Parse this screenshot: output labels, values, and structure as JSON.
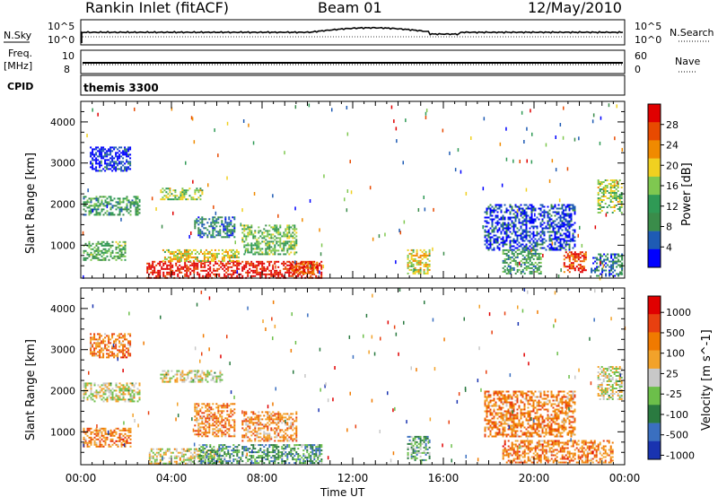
{
  "header": {
    "station": "Rankin Inlet (fitACF)",
    "beam": "Beam 01",
    "date": "12/May/2010"
  },
  "labels": {
    "nsky": "N.Sky",
    "nsearch": "N.Search",
    "freq_line1": "Freq.",
    "freq_line2": "[MHz]",
    "nave": "Nave",
    "cpid": "CPID",
    "cpid_value": "themis 3300",
    "ytick_noise_hi": "10^5",
    "ytick_noise_lo": "10^0",
    "ytick_freq_hi": "10",
    "ytick_freq_lo": "8",
    "ytick_nave_hi": "60",
    "ytick_nave_lo": "0"
  },
  "colors": {
    "power": [
      "#0000ff",
      "#1e5bb4",
      "#3a8c4a",
      "#2f9a55",
      "#7fc850",
      "#f0d020",
      "#f08a00",
      "#e84a00",
      "#e00000"
    ],
    "velocity": [
      "#1933b0",
      "#3a6fc0",
      "#2a7a40",
      "#6cbf4a",
      "#c8c8c8",
      "#f2a22a",
      "#f07a00",
      "#e84010",
      "#e00000"
    ]
  },
  "chart_data": [
    {
      "type": "heatmap",
      "title": "",
      "xlabel": "Time UT",
      "ylabel": "Slant Range [km]",
      "x_ticks": [
        "00:00",
        "04:00",
        "08:00",
        "12:00",
        "16:00",
        "20:00",
        "00:00"
      ],
      "y_ticks": [
        "1000",
        "2000",
        "3000",
        "4000"
      ],
      "ylim": [
        200,
        4500
      ],
      "colorbar_label": "Power [dB]",
      "colorbar_ticks": [
        "4",
        "8",
        "12",
        "16",
        "20",
        "24",
        "28"
      ],
      "regions": [
        {
          "t0": 0.1,
          "t1": 2.6,
          "r0": 1750,
          "r1": 2200,
          "level": 0.35
        },
        {
          "t0": 0.1,
          "t1": 2.0,
          "r0": 650,
          "r1": 1100,
          "level": 0.4
        },
        {
          "t0": 0.4,
          "t1": 2.2,
          "r0": 2800,
          "r1": 3400,
          "level": 0.08
        },
        {
          "t0": 2.9,
          "t1": 10.6,
          "r0": 220,
          "r1": 620,
          "level": 0.97
        },
        {
          "t0": 3.6,
          "t1": 7.0,
          "r0": 600,
          "r1": 900,
          "level": 0.6
        },
        {
          "t0": 3.5,
          "t1": 5.4,
          "r0": 2100,
          "r1": 2400,
          "level": 0.5
        },
        {
          "t0": 5.0,
          "t1": 6.8,
          "r0": 1200,
          "r1": 1700,
          "level": 0.25
        },
        {
          "t0": 7.1,
          "t1": 9.5,
          "r0": 800,
          "r1": 1500,
          "level": 0.45
        },
        {
          "t0": 9.2,
          "t1": 10.4,
          "r0": 300,
          "r1": 600,
          "level": 0.85
        },
        {
          "t0": 14.4,
          "t1": 15.4,
          "r0": 300,
          "r1": 900,
          "level": 0.6
        },
        {
          "t0": 17.8,
          "t1": 21.8,
          "r0": 900,
          "r1": 2000,
          "level": 0.12
        },
        {
          "t0": 18.6,
          "t1": 20.3,
          "r0": 300,
          "r1": 900,
          "level": 0.35
        },
        {
          "t0": 21.3,
          "t1": 22.3,
          "r0": 350,
          "r1": 850,
          "level": 0.88
        },
        {
          "t0": 22.8,
          "t1": 23.9,
          "r0": 1800,
          "r1": 2600,
          "level": 0.5
        },
        {
          "t0": 22.5,
          "t1": 23.9,
          "r0": 250,
          "r1": 800,
          "level": 0.2
        }
      ]
    },
    {
      "type": "heatmap",
      "title": "",
      "xlabel": "Time UT",
      "ylabel": "Slant Range [km]",
      "x_ticks": [
        "00:00",
        "04:00",
        "08:00",
        "12:00",
        "16:00",
        "20:00",
        "00:00"
      ],
      "y_ticks": [
        "1000",
        "2000",
        "3000",
        "4000"
      ],
      "ylim": [
        200,
        4500
      ],
      "colorbar_label": "Velocity [m s^-1]",
      "colorbar_ticks": [
        "1000",
        "500",
        "100",
        "25",
        "-25",
        "-100",
        "-500",
        "-1000"
      ],
      "regions": [
        {
          "t0": 0.1,
          "t1": 2.6,
          "r0": 1750,
          "r1": 2200,
          "level": 0.5
        },
        {
          "t0": 0.1,
          "t1": 2.2,
          "r0": 650,
          "r1": 1100,
          "level": 0.72
        },
        {
          "t0": 0.4,
          "t1": 2.2,
          "r0": 2800,
          "r1": 3400,
          "level": 0.72
        },
        {
          "t0": 3.0,
          "t1": 6.2,
          "r0": 220,
          "r1": 600,
          "level": 0.5
        },
        {
          "t0": 5.2,
          "t1": 10.6,
          "r0": 220,
          "r1": 700,
          "level": 0.3
        },
        {
          "t0": 3.5,
          "t1": 6.2,
          "r0": 2200,
          "r1": 2500,
          "level": 0.5
        },
        {
          "t0": 5.0,
          "t1": 6.8,
          "r0": 900,
          "r1": 1700,
          "level": 0.7
        },
        {
          "t0": 7.1,
          "t1": 9.5,
          "r0": 800,
          "r1": 1500,
          "level": 0.68
        },
        {
          "t0": 14.4,
          "t1": 15.4,
          "r0": 300,
          "r1": 900,
          "level": 0.35
        },
        {
          "t0": 17.8,
          "t1": 21.8,
          "r0": 900,
          "r1": 2000,
          "level": 0.7
        },
        {
          "t0": 18.6,
          "t1": 23.5,
          "r0": 250,
          "r1": 800,
          "level": 0.72
        },
        {
          "t0": 22.8,
          "t1": 23.9,
          "r0": 1800,
          "r1": 2600,
          "level": 0.5
        }
      ]
    }
  ]
}
